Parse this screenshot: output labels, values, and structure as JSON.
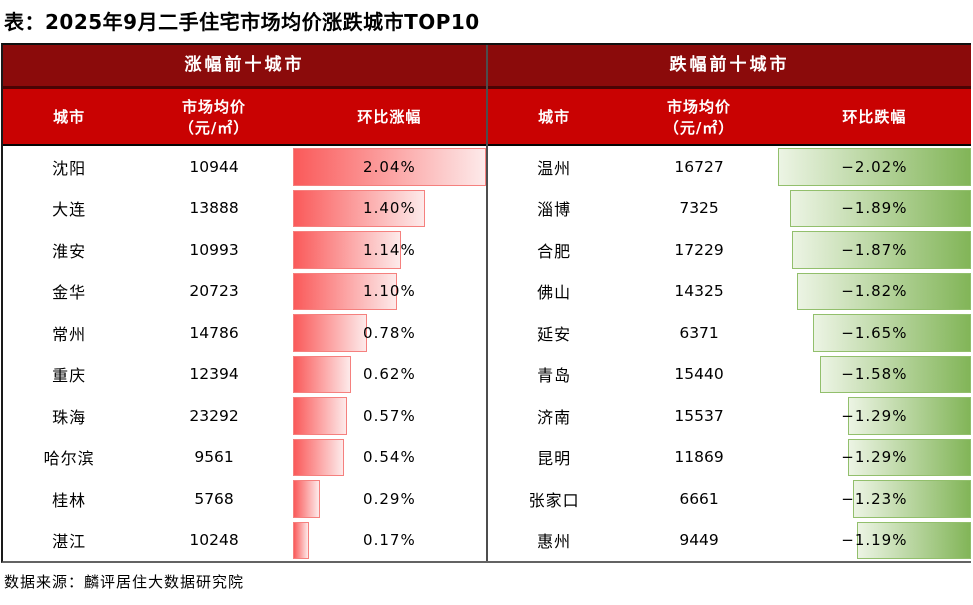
{
  "title": "表：2025年9月二手住宅市场均价涨跌城市TOP10",
  "source": "数据来源：麟评居住大数据研究院",
  "colors": {
    "header_dark_red": "#8B0B0B",
    "header_bright_red": "#C90202",
    "bar_up_strong": "#FA5A5A",
    "bar_up_pale": "#FDEAEA",
    "bar_up_border": "#F5807E",
    "bar_down_strong": "#82B558",
    "bar_down_pale": "#ECF4E4",
    "bar_down_border": "#92BF6C"
  },
  "panels": [
    {
      "header": "涨幅前十城市",
      "columns": {
        "city": "城市",
        "price_line1": "市场均价",
        "price_line2": "（元/㎡）",
        "change": "环比涨幅"
      },
      "bar": {
        "direction": "left-anchored",
        "max": 2.04
      },
      "rows": [
        {
          "city": "沈阳",
          "price": "10944",
          "change": "2.04%",
          "value": 2.04
        },
        {
          "city": "大连",
          "price": "13888",
          "change": "1.40%",
          "value": 1.4
        },
        {
          "city": "淮安",
          "price": "10993",
          "change": "1.14%",
          "value": 1.14
        },
        {
          "city": "金华",
          "price": "20723",
          "change": "1.10%",
          "value": 1.1
        },
        {
          "city": "常州",
          "price": "14786",
          "change": "0.78%",
          "value": 0.78
        },
        {
          "city": "重庆",
          "price": "12394",
          "change": "0.62%",
          "value": 0.62
        },
        {
          "city": "珠海",
          "price": "23292",
          "change": "0.57%",
          "value": 0.57
        },
        {
          "city": "哈尔滨",
          "price": "9561",
          "change": "0.54%",
          "value": 0.54
        },
        {
          "city": "桂林",
          "price": "5768",
          "change": "0.29%",
          "value": 0.29
        },
        {
          "city": "湛江",
          "price": "10248",
          "change": "0.17%",
          "value": 0.17
        }
      ]
    },
    {
      "header": "跌幅前十城市",
      "columns": {
        "city": "城市",
        "price_line1": "市场均价",
        "price_line2": "（元/㎡）",
        "change": "环比跌幅"
      },
      "bar": {
        "direction": "right-anchored",
        "max": 2.02
      },
      "rows": [
        {
          "city": "温州",
          "price": "16727",
          "change": "−2.02%",
          "value": -2.02
        },
        {
          "city": "淄博",
          "price": "7325",
          "change": "−1.89%",
          "value": -1.89
        },
        {
          "city": "合肥",
          "price": "17229",
          "change": "−1.87%",
          "value": -1.87
        },
        {
          "city": "佛山",
          "price": "14325",
          "change": "−1.82%",
          "value": -1.82
        },
        {
          "city": "延安",
          "price": "6371",
          "change": "−1.65%",
          "value": -1.65
        },
        {
          "city": "青岛",
          "price": "15440",
          "change": "−1.58%",
          "value": -1.58
        },
        {
          "city": "济南",
          "price": "15537",
          "change": "−1.29%",
          "value": -1.29
        },
        {
          "city": "昆明",
          "price": "11869",
          "change": "−1.29%",
          "value": -1.29
        },
        {
          "city": "张家口",
          "price": "6661",
          "change": "−1.23%",
          "value": -1.23
        },
        {
          "city": "惠州",
          "price": "9449",
          "change": "−1.19%",
          "value": -1.19
        }
      ]
    }
  ],
  "chart_data": [
    {
      "type": "table",
      "title": "涨幅前十城市",
      "columns": [
        "城市",
        "市场均价（元/㎡）",
        "环比涨幅(%)"
      ],
      "rows": [
        [
          "沈阳",
          10944,
          2.04
        ],
        [
          "大连",
          13888,
          1.4
        ],
        [
          "淮安",
          10993,
          1.14
        ],
        [
          "金华",
          20723,
          1.1
        ],
        [
          "常州",
          14786,
          0.78
        ],
        [
          "重庆",
          12394,
          0.62
        ],
        [
          "珠海",
          23292,
          0.57
        ],
        [
          "哈尔滨",
          9561,
          0.54
        ],
        [
          "桂林",
          5768,
          0.29
        ],
        [
          "湛江",
          10248,
          0.17
        ]
      ],
      "bar_style": "red data bars, left-anchored, scaled 0 to 2.04"
    },
    {
      "type": "table",
      "title": "跌幅前十城市",
      "columns": [
        "城市",
        "市场均价（元/㎡）",
        "环比跌幅(%)"
      ],
      "rows": [
        [
          "温州",
          16727,
          -2.02
        ],
        [
          "淄博",
          7325,
          -1.89
        ],
        [
          "合肥",
          17229,
          -1.87
        ],
        [
          "佛山",
          14325,
          -1.82
        ],
        [
          "延安",
          6371,
          -1.65
        ],
        [
          "青岛",
          15440,
          -1.58
        ],
        [
          "济南",
          15537,
          -1.29
        ],
        [
          "昆明",
          11869,
          -1.29
        ],
        [
          "张家口",
          6661,
          -1.23
        ],
        [
          "惠州",
          9449,
          -1.19
        ]
      ],
      "bar_style": "green data bars, right-anchored, scaled 0 to -2.02"
    }
  ]
}
